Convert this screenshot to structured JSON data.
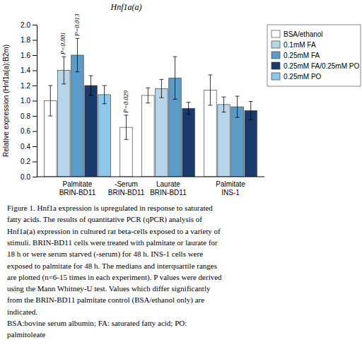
{
  "chart_data": {
    "type": "bar",
    "title": "Hnf1a(a)",
    "y_label": "Relative expression (Hnf1a(a):B2m)",
    "categories": [
      "Palmitate\nBRIN-BD11",
      "-Serum\nBRIN-BD11",
      "Laurate\nBRIN-BD11",
      "Palmitate\nINS-1"
    ],
    "series": [
      {
        "name": "BSA/ethanol",
        "color": "#FFFFFF",
        "values": [
          1.0,
          0.65,
          1.07,
          1.14
        ],
        "errors": [
          0.2,
          0.16,
          0.1,
          0.2
        ]
      },
      {
        "name": "0.1mM FA",
        "color": "#B8D4E8",
        "values": [
          1.4,
          null,
          1.16,
          0.95
        ],
        "errors": [
          0.18,
          null,
          0.12,
          0.1
        ]
      },
      {
        "name": "0.25mM FA",
        "color": "#5B9BC8",
        "values": [
          1.6,
          null,
          1.3,
          0.92
        ],
        "errors": [
          0.22,
          null,
          0.28,
          0.14
        ]
      },
      {
        "name": "0.25mM FA/0.25mM PO",
        "color": "#1A3A6B",
        "values": [
          1.2,
          null,
          0.9,
          0.87
        ],
        "errors": [
          0.13,
          null,
          0.08,
          0.12
        ]
      },
      {
        "name": "0.25mM PO",
        "color": "#8EC8E8",
        "values": [
          1.08,
          null,
          null,
          null
        ],
        "errors": [
          0.12,
          null,
          null,
          null
        ]
      }
    ],
    "annotations": [
      {
        "text": "P<0.001",
        "category": 0,
        "series": 1
      },
      {
        "text": "P=0.013",
        "category": 0,
        "series": 2
      },
      {
        "text": "P=0.029",
        "category": 1,
        "series": 0
      }
    ],
    "ylim": [
      0,
      2.0
    ],
    "yticks": [
      {
        "value": 0,
        "label": "0.0"
      },
      0.2,
      0.4,
      0.6,
      0.8,
      {
        "value": 1.0,
        "label": "1.0"
      },
      1.2,
      1.4,
      1.6,
      1.8,
      {
        "value": 2.0,
        "label": "2.0"
      }
    ],
    "grid": false,
    "legend": "upper right",
    "caption": [
      "Figure 1. Hnf1a expression is upregulated in response to saturated",
      "fatty acids. The results of quantitative PCR (qPCR) analysis of",
      "Hnf1a(a) expression in cultured rat beta-cells exposed to a variety of",
      "stimuli. BRIN-BD11 cells were treated with palmitate or laurate for",
      "18 h or were serum starved (-serum) for 48 h. INS-1 cells were",
      "exposed to palmitate for 48 h. The medians and interquartile ranges",
      "are plotted (n=6-15 times in each experiment). P values were derived",
      "using the Mann Whitney-U test. Values which differ significantly",
      "from the BRIN-BD11 palmitate control (BSA/ethanol only) are",
      "indicated.",
      "BSA:bovine serum albumin; FA: saturated fatty acid; PO:",
      "palmitoleate"
    ]
  }
}
